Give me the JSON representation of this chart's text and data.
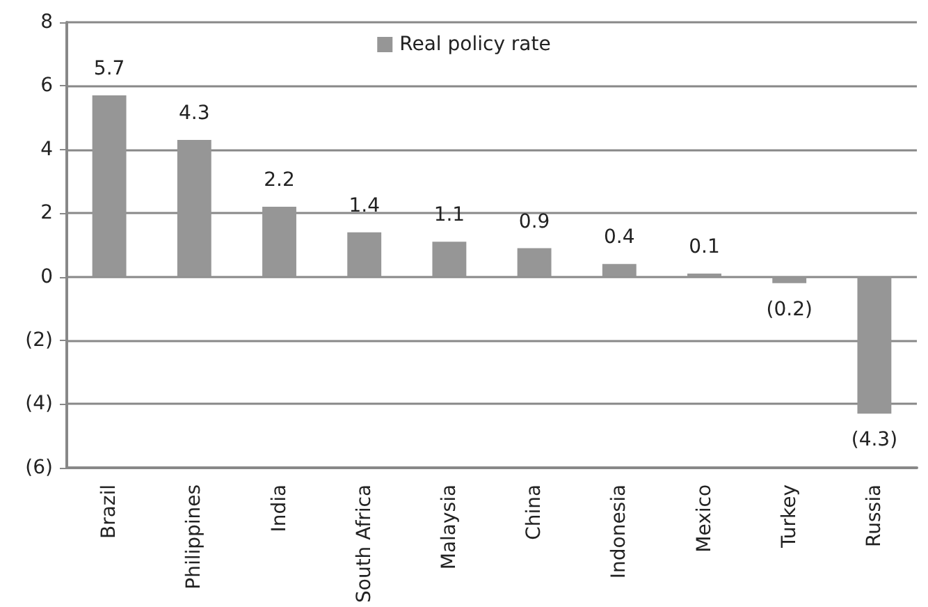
{
  "chart_data": {
    "type": "bar",
    "categories": [
      "Brazil",
      "Philippines",
      "India",
      "South Africa",
      "Malaysia",
      "China",
      "Indonesia",
      "Mexico",
      "Turkey",
      "Russia"
    ],
    "series": [
      {
        "name": "Real policy rate",
        "color": "#969696",
        "values": [
          5.7,
          4.3,
          2.2,
          1.4,
          1.1,
          0.9,
          0.4,
          0.1,
          -0.2,
          -4.3
        ],
        "value_labels": [
          "5.7",
          "4.3",
          "2.2",
          "1.4",
          "1.1",
          "0.9",
          "0.4",
          "0.1",
          "(0.2)",
          "(4.3)"
        ]
      }
    ],
    "ylim": [
      -6,
      8
    ],
    "yticks": [
      {
        "value": -6,
        "label": "(6)"
      },
      {
        "value": -4,
        "label": "(4)"
      },
      {
        "value": -2,
        "label": "(2)"
      },
      0,
      2,
      4,
      6,
      8
    ],
    "grid": "y",
    "legend": "top"
  }
}
